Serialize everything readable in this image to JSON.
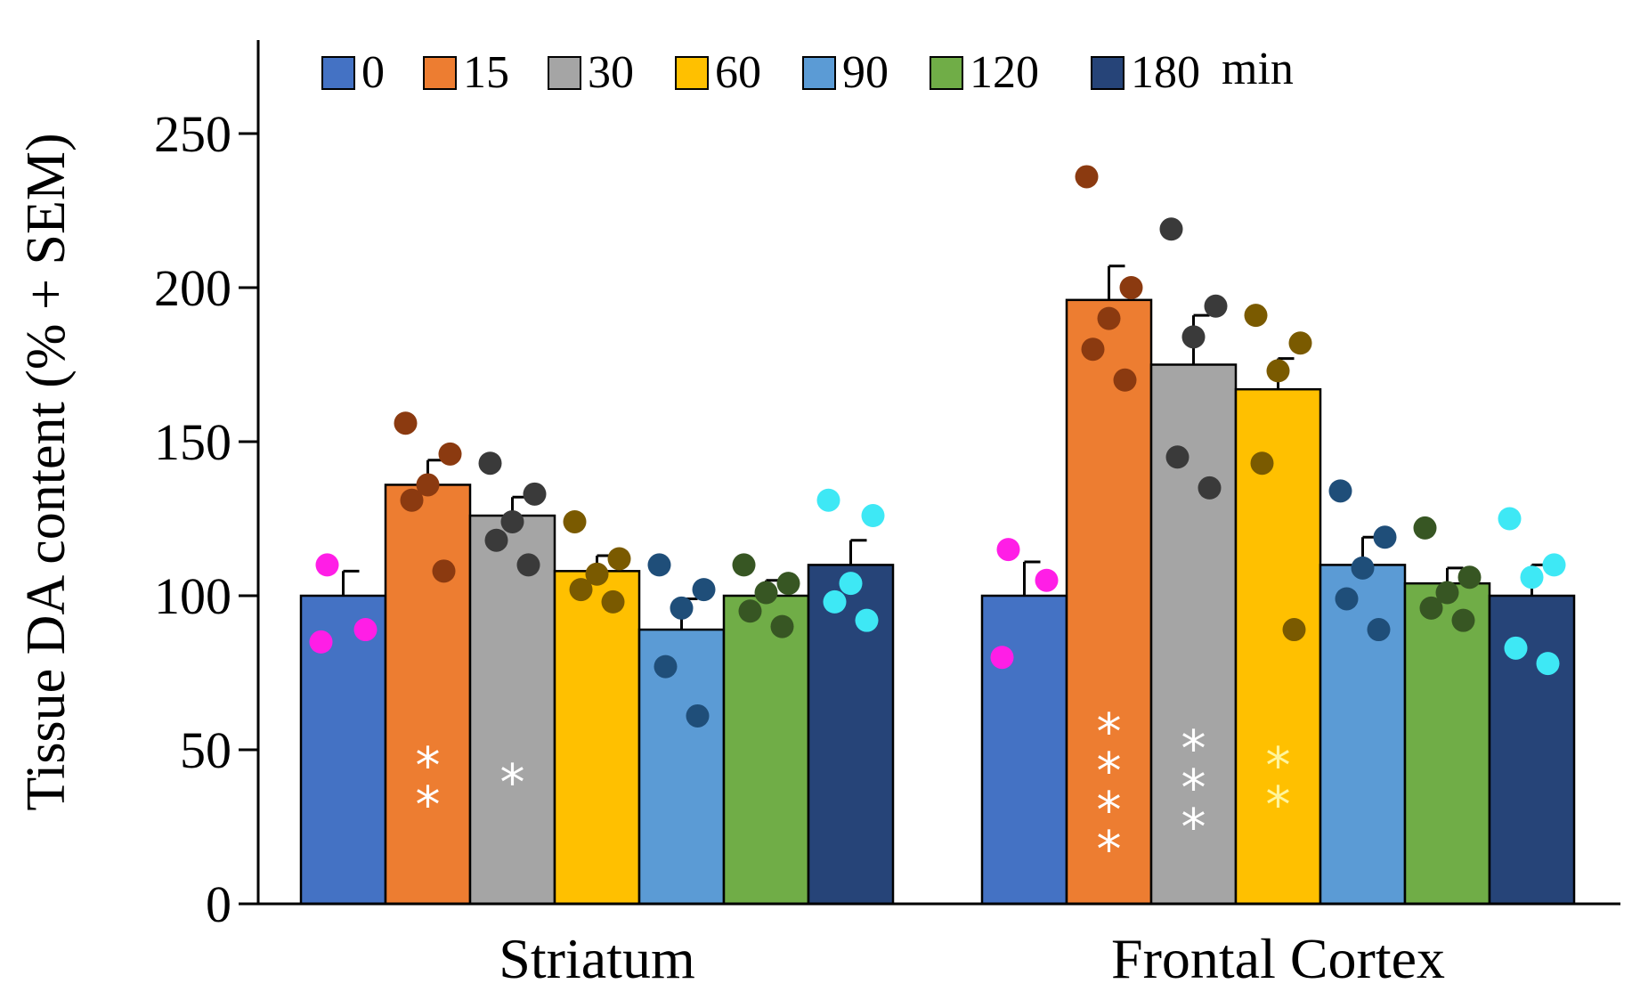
{
  "chart_data": {
    "type": "bar",
    "categories": [
      "Striatum",
      "Frontal Cortex"
    ],
    "ylabel": "Tissue DA content  (% + SEM)",
    "ylim": [
      0,
      280
    ],
    "yticks": [
      0,
      50,
      100,
      150,
      200,
      250
    ],
    "legend_unit": "min",
    "legend_position": "top",
    "series": [
      {
        "name": "0",
        "color": "#4472C4",
        "dot_color": "#FF1EE6",
        "values": [
          100,
          100
        ],
        "sem": [
          8,
          11
        ],
        "points": [
          [
            110,
            85,
            89
          ],
          [
            115,
            80,
            105
          ]
        ],
        "stars": [
          "",
          ""
        ]
      },
      {
        "name": "15",
        "color": "#ED7D31",
        "dot_color": "#8B3A10",
        "values": [
          136,
          196
        ],
        "sem": [
          8,
          11
        ],
        "points": [
          [
            156,
            146,
            136,
            131,
            108
          ],
          [
            236,
            200,
            190,
            180,
            170
          ]
        ],
        "stars": [
          "**",
          "****"
        ]
      },
      {
        "name": "30",
        "color": "#A5A5A5",
        "dot_color": "#3A3A3A",
        "values": [
          126,
          175
        ],
        "sem": [
          6,
          16
        ],
        "points": [
          [
            143,
            133,
            124,
            118,
            110
          ],
          [
            219,
            194,
            184,
            145,
            135
          ]
        ],
        "stars": [
          "*",
          "***"
        ]
      },
      {
        "name": "60",
        "color": "#FFC000",
        "dot_color": "#7A5A00",
        "values": [
          108,
          167
        ],
        "sem": [
          5,
          10
        ],
        "points": [
          [
            124,
            112,
            107,
            102,
            98
          ],
          [
            191,
            182,
            173,
            143,
            89
          ]
        ],
        "stars": [
          "",
          "**"
        ]
      },
      {
        "name": "90",
        "color": "#5B9BD5",
        "dot_color": "#1F4E79",
        "values": [
          89,
          110
        ],
        "sem": [
          10,
          9
        ],
        "points": [
          [
            110,
            102,
            96,
            77,
            61
          ],
          [
            134,
            119,
            109,
            99,
            89
          ]
        ],
        "stars": [
          "",
          ""
        ]
      },
      {
        "name": "120",
        "color": "#70AD47",
        "dot_color": "#375623",
        "values": [
          100,
          104
        ],
        "sem": [
          5,
          5
        ],
        "points": [
          [
            110,
            104,
            101,
            95,
            90
          ],
          [
            122,
            106,
            101,
            96,
            92
          ]
        ],
        "stars": [
          "",
          ""
        ]
      },
      {
        "name": "180",
        "color": "#264478",
        "dot_color": "#3EE8F5",
        "values": [
          110,
          100
        ],
        "sem": [
          8,
          10
        ],
        "points": [
          [
            131,
            126,
            104,
            98,
            92
          ],
          [
            125,
            110,
            106,
            83,
            78
          ]
        ],
        "stars": [
          "",
          ""
        ]
      }
    ]
  }
}
